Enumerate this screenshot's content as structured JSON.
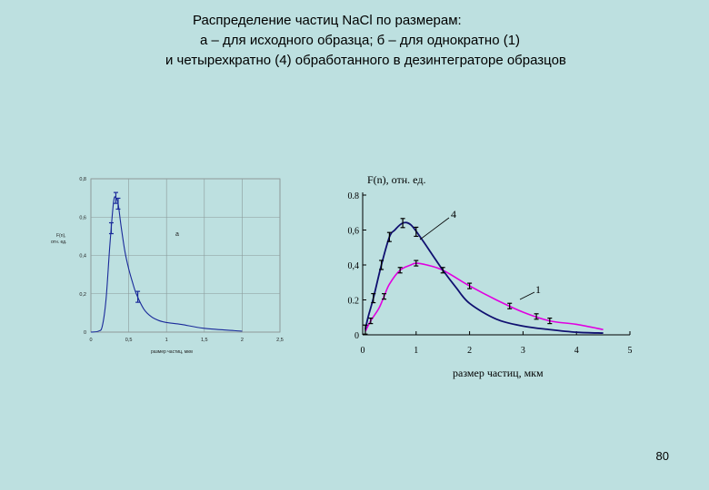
{
  "title": {
    "line1": "Распределение частиц NaCl по размерам:",
    "line2": "а  –  для исходного образца; б  –   для однократно (1)",
    "line3": "и четырехкратно (4) обработанного в дезинтеграторе образцов"
  },
  "slide_number": "80",
  "colors": {
    "background": "#bde0e0",
    "curve_1": "#e000e0",
    "curve_4": "#101070",
    "curve_a": "#1a2a9a"
  },
  "chart_data": [
    {
      "type": "line",
      "panel_label": "а",
      "ylabel": "F(n), отн. ед.",
      "xlabel": "размер частиц, мкм",
      "xlim": [
        0,
        2.5
      ],
      "ylim": [
        0,
        0.8
      ],
      "x_ticks": [
        "0",
        "0,5",
        "1",
        "1,5",
        "2",
        "2,5"
      ],
      "y_ticks": [
        "0",
        "0,2",
        "0,4",
        "0,6",
        "0,8"
      ],
      "grid": true,
      "series": [
        {
          "x": [
            0,
            0.1,
            0.15,
            0.2,
            0.25,
            0.3,
            0.33,
            0.36,
            0.4,
            0.45,
            0.5,
            0.55,
            0.6,
            0.7,
            0.8,
            0.9,
            1.0,
            1.2,
            1.5,
            2.0
          ],
          "y": [
            0,
            0.005,
            0.03,
            0.17,
            0.45,
            0.68,
            0.7,
            0.67,
            0.55,
            0.42,
            0.33,
            0.26,
            0.2,
            0.12,
            0.08,
            0.06,
            0.05,
            0.04,
            0.02,
            0.005
          ]
        }
      ],
      "error_bar_x": [
        0.27,
        0.33,
        0.36,
        0.62
      ]
    },
    {
      "type": "line",
      "panel_label": "4",
      "ylabel": "F(n), отн. ед.",
      "xlabel": "размер частиц, мкм",
      "xlim": [
        0,
        5
      ],
      "ylim": [
        0,
        0.8
      ],
      "x_ticks": [
        "0",
        "1",
        "2",
        "3",
        "4",
        "5"
      ],
      "y_ticks": [
        "0",
        "0.2",
        "0,4",
        "0,6",
        "0.8"
      ],
      "grid": false,
      "series": [
        {
          "name": "4",
          "x": [
            0.05,
            0.1,
            0.2,
            0.35,
            0.5,
            0.6,
            0.75,
            0.9,
            1.1,
            1.3,
            1.5,
            1.75,
            2.0,
            2.5,
            3.0,
            3.5,
            4.0,
            4.5
          ],
          "y": [
            0.03,
            0.1,
            0.21,
            0.4,
            0.56,
            0.6,
            0.64,
            0.63,
            0.55,
            0.46,
            0.37,
            0.27,
            0.18,
            0.09,
            0.05,
            0.03,
            0.015,
            0.01
          ]
        },
        {
          "name": "1",
          "x": [
            0.05,
            0.15,
            0.3,
            0.4,
            0.5,
            0.7,
            0.9,
            1.0,
            1.2,
            1.5,
            2.0,
            2.5,
            3.0,
            3.5,
            4.0,
            4.5
          ],
          "y": [
            0.02,
            0.08,
            0.15,
            0.22,
            0.29,
            0.37,
            0.4,
            0.41,
            0.4,
            0.37,
            0.28,
            0.2,
            0.13,
            0.08,
            0.06,
            0.03
          ]
        }
      ],
      "error_bar_x_4": [
        0.05,
        0.2,
        0.35,
        0.5,
        0.75,
        1.0
      ],
      "error_bar_x_1": [
        0.15,
        0.4,
        0.7,
        1.0,
        1.5,
        2.0,
        2.75,
        3.25,
        3.5
      ]
    }
  ]
}
